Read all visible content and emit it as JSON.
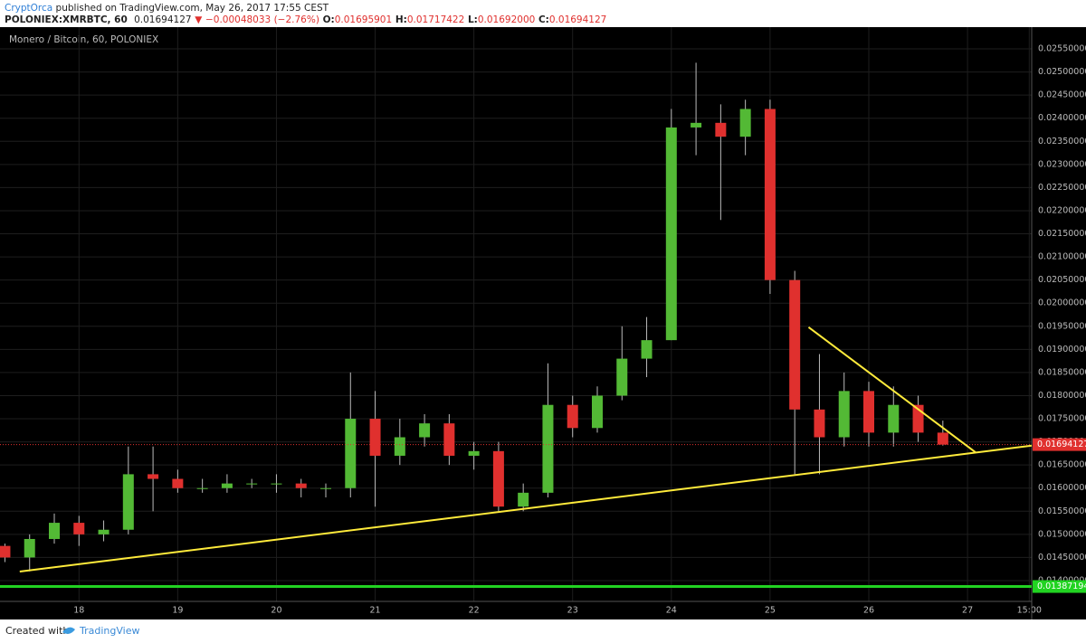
{
  "header": {
    "author": "CryptOrca",
    "published": "published on TradingView.com, May 26, 2017 17:55 CEST",
    "symbol": "POLONIEX:XMRBTC, 60",
    "last": "0.01694127",
    "arrow": "▼",
    "change": "−0.00048033 (−2.76%)",
    "o_label": "O:",
    "o": "0.01695901",
    "h_label": "H:",
    "h": "0.01717422",
    "l_label": "L:",
    "l": "0.01692000",
    "c_label": "C:",
    "c": "0.01694127"
  },
  "footer": {
    "text": "Created with",
    "brand": "TradingView"
  },
  "chart_data": {
    "type": "candlestick",
    "title": "Monero / Bitcoin, 60, POLONIEX",
    "up_color": "#53b935",
    "down_color": "#e0302e",
    "grid": true,
    "x": [
      17.25,
      17.5,
      17.75,
      18,
      18.25,
      18.5,
      18.75,
      19,
      19.25,
      19.5,
      19.75,
      20,
      20.25,
      20.5,
      20.75,
      21,
      21.25,
      21.5,
      21.75,
      22,
      22.25,
      22.5,
      22.75,
      23,
      23.25,
      23.5,
      23.75,
      24,
      24.25,
      24.5,
      24.75,
      25,
      25.25,
      25.5,
      25.75,
      26,
      26.25,
      26.5,
      26.75
    ],
    "open": [
      0.01475,
      0.0145,
      0.0149,
      0.01525,
      0.015,
      0.0151,
      0.0163,
      0.0162,
      0.016,
      0.016,
      0.0161,
      0.0161,
      0.0161,
      0.016,
      0.016,
      0.0175,
      0.0167,
      0.0171,
      0.0174,
      0.0167,
      0.0168,
      0.0156,
      0.0159,
      0.0178,
      0.0173,
      0.018,
      0.0188,
      0.0192,
      0.0238,
      0.0239,
      0.0236,
      0.0242,
      0.0205,
      0.0177,
      0.0171,
      0.0181,
      0.0172,
      0.0178,
      0.0172
    ],
    "high": [
      0.0148,
      0.015,
      0.01545,
      0.0154,
      0.0153,
      0.0169,
      0.0169,
      0.0164,
      0.0162,
      0.0163,
      0.0162,
      0.0163,
      0.0162,
      0.0161,
      0.0185,
      0.0181,
      0.0175,
      0.0176,
      0.0176,
      0.017,
      0.017,
      0.0161,
      0.0187,
      0.018,
      0.0182,
      0.0195,
      0.0197,
      0.0242,
      0.0252,
      0.0243,
      0.0244,
      0.0244,
      0.0207,
      0.0189,
      0.0185,
      0.0183,
      0.0182,
      0.018,
      0.01746
    ],
    "low": [
      0.0144,
      0.0142,
      0.0148,
      0.01475,
      0.01485,
      0.015,
      0.0155,
      0.0159,
      0.0159,
      0.0159,
      0.016,
      0.0159,
      0.0158,
      0.0158,
      0.0158,
      0.0156,
      0.0165,
      0.0169,
      0.0165,
      0.0164,
      0.0155,
      0.0155,
      0.0158,
      0.0171,
      0.0172,
      0.0179,
      0.0184,
      0.0192,
      0.0232,
      0.0218,
      0.0232,
      0.0202,
      0.0163,
      0.0163,
      0.0169,
      0.0169,
      0.0169,
      0.017,
      0.01692
    ],
    "close": [
      0.0145,
      0.0149,
      0.01525,
      0.015,
      0.0151,
      0.0163,
      0.0162,
      0.016,
      0.016,
      0.0161,
      0.0161,
      0.0161,
      0.016,
      0.016,
      0.0175,
      0.0167,
      0.0171,
      0.0174,
      0.0167,
      0.0168,
      0.0156,
      0.0159,
      0.0178,
      0.0173,
      0.018,
      0.0188,
      0.0192,
      0.0238,
      0.0239,
      0.0236,
      0.0242,
      0.0205,
      0.0177,
      0.0171,
      0.0181,
      0.0172,
      0.0178,
      0.0172,
      0.01694127
    ],
    "xlim": [
      17.2,
      27.65
    ],
    "ylim": [
      0.01355,
      0.02597
    ],
    "xticks": [
      18,
      19,
      20,
      21,
      22,
      23,
      24,
      25,
      26,
      27,
      {
        "value": 27.625,
        "label": "15:00"
      }
    ],
    "yticks": [
      {
        "value": 0.014,
        "label": "0.01400000"
      },
      {
        "value": 0.0145,
        "label": "0.01450000"
      },
      {
        "value": 0.015,
        "label": "0.01500000"
      },
      {
        "value": 0.0155,
        "label": "0.01550000"
      },
      {
        "value": 0.016,
        "label": "0.01600000"
      },
      {
        "value": 0.0165,
        "label": "0.01650000"
      },
      {
        "value": 0.017,
        "label": "0.01700000"
      },
      {
        "value": 0.0175,
        "label": "0.01750000"
      },
      {
        "value": 0.018,
        "label": "0.01800000"
      },
      {
        "value": 0.0185,
        "label": "0.01850000"
      },
      {
        "value": 0.019,
        "label": "0.01900000"
      },
      {
        "value": 0.0195,
        "label": "0.01950000"
      },
      {
        "value": 0.02,
        "label": "0.02000000"
      },
      {
        "value": 0.0205,
        "label": "0.02050000"
      },
      {
        "value": 0.021,
        "label": "0.02100000"
      },
      {
        "value": 0.0215,
        "label": "0.02150000"
      },
      {
        "value": 0.022,
        "label": "0.02200000"
      },
      {
        "value": 0.0225,
        "label": "0.02250000"
      },
      {
        "value": 0.023,
        "label": "0.02300000"
      },
      {
        "value": 0.0235,
        "label": "0.02350000"
      },
      {
        "value": 0.024,
        "label": "0.02400000"
      },
      {
        "value": 0.0245,
        "label": "0.02450000"
      },
      {
        "value": 0.025,
        "label": "0.02500000"
      },
      {
        "value": 0.0255,
        "label": "0.02550000"
      }
    ],
    "trendlines": [
      {
        "color": "#ffeb3b",
        "x": [
          17.4,
          27.65
        ],
        "y": [
          0.014195,
          0.01692
        ]
      },
      {
        "color": "#ffeb3b",
        "x": [
          25.39,
          27.08
        ],
        "y": [
          0.01948,
          0.016777
        ]
      }
    ],
    "price_lines": [
      {
        "value": 0.01694127,
        "label": "0.01694127",
        "color": "#e0302e",
        "style": "dotted"
      },
      {
        "value": 0.01387194,
        "label": "0.01387194",
        "color": "#21d321",
        "style": "solid"
      }
    ]
  }
}
